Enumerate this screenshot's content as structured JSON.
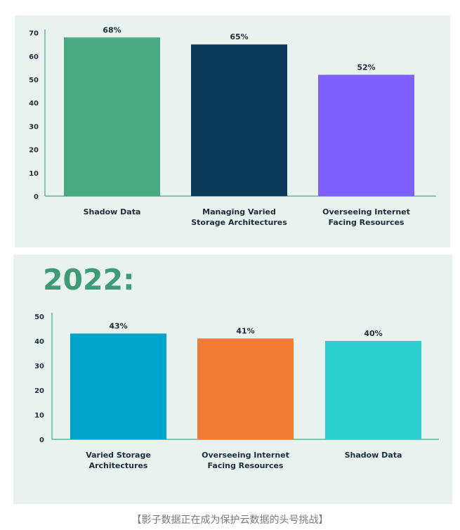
{
  "chart_data": [
    {
      "type": "bar",
      "title": "",
      "categories": [
        [
          "Shadow Data"
        ],
        [
          "Managing Varied",
          "Storage Architectures"
        ],
        [
          "Overseeing Internet",
          "Facing Resources"
        ]
      ],
      "values": [
        68,
        65,
        52
      ],
      "value_labels": [
        "68%",
        "65%",
        "52%"
      ],
      "colors": [
        "#4aa882",
        "#0d3a5a",
        "#7d60ff"
      ],
      "yticks": [
        0,
        10,
        20,
        30,
        40,
        50,
        60,
        70
      ],
      "ylim": [
        0,
        72
      ],
      "xlabel": "",
      "ylabel": ""
    },
    {
      "type": "bar",
      "title": "2022:",
      "categories": [
        [
          "Varied Storage",
          "Architectures"
        ],
        [
          "Overseeing Internet",
          "Facing Resources"
        ],
        [
          "Shadow Data"
        ]
      ],
      "values": [
        43,
        41,
        40
      ],
      "value_labels": [
        "43%",
        "41%",
        "40%"
      ],
      "colors": [
        "#00a3cb",
        "#f27c35",
        "#2ccfce"
      ],
      "yticks": [
        0,
        10,
        20,
        30,
        40,
        50
      ],
      "ylim": [
        0,
        50
      ],
      "xlabel": "",
      "ylabel": ""
    }
  ],
  "colors": {
    "panel_bg": "#e8f2ee",
    "axis": "#4aa882",
    "text": "#1f2d3a",
    "title": "#3f9a78"
  },
  "caption": "【影子数据正在成为保护云数据的头号挑战】"
}
